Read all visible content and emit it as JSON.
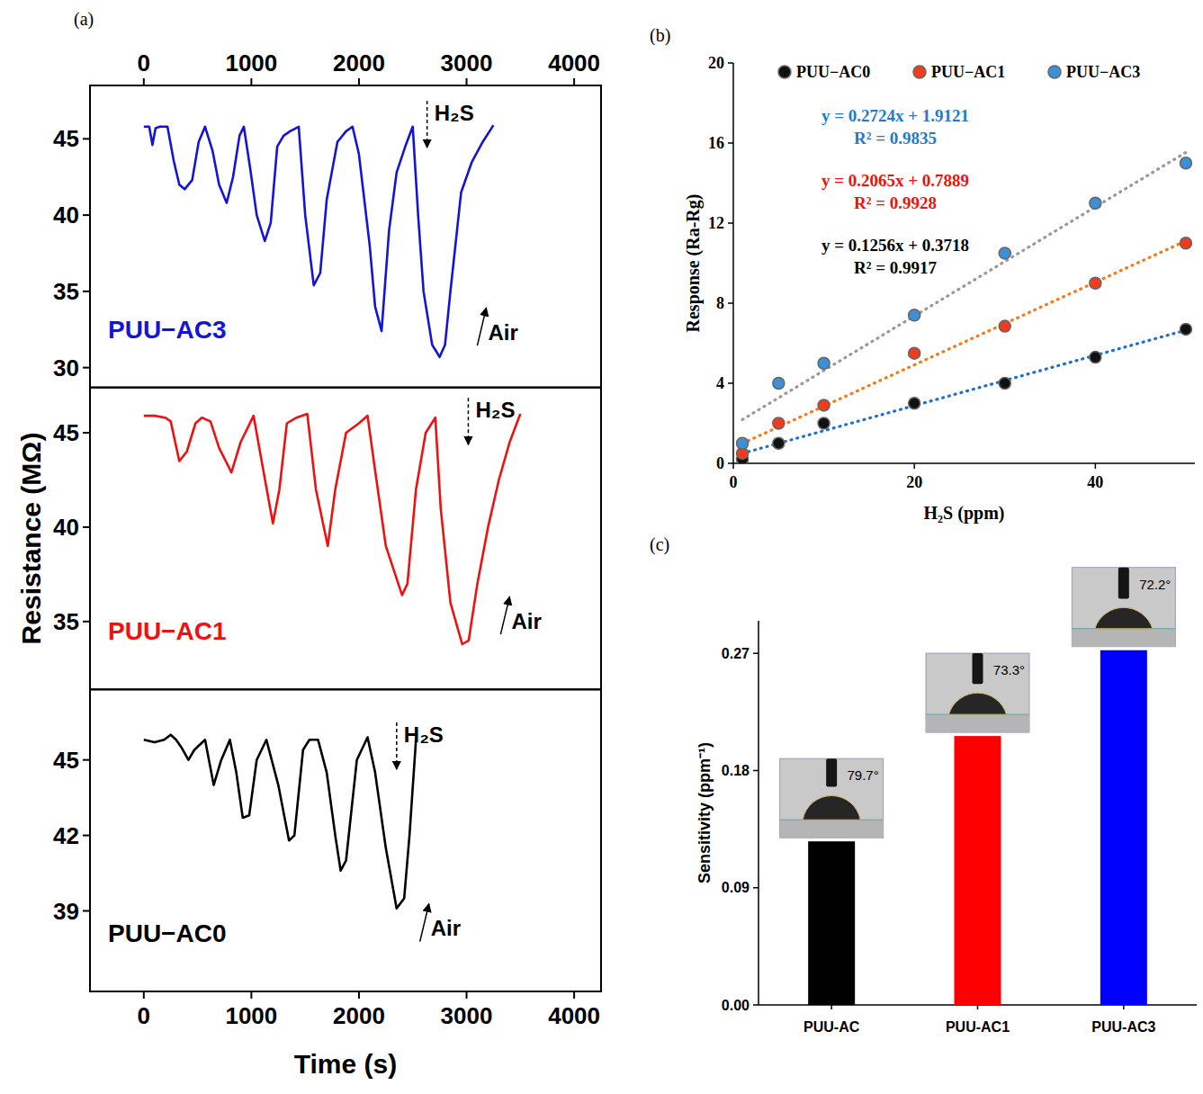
{
  "chart_data": [
    {
      "type": "line",
      "panel_label": "(a)",
      "x": [
        0,
        50,
        80,
        110,
        150,
        220,
        280,
        330,
        380,
        450,
        510,
        570,
        640,
        700,
        770,
        830,
        890,
        930,
        990,
        1050,
        1125,
        1180,
        1240,
        1300,
        1360,
        1440,
        1500,
        1580,
        1640,
        1700,
        1800,
        1880,
        1940,
        2000,
        2100,
        2150,
        2210,
        2280,
        2350,
        2430,
        2500,
        2550,
        2600,
        2680,
        2750,
        2800,
        2850,
        2950,
        3050,
        3150,
        3250
      ],
      "series": [
        {
          "name": "PUU−AC3",
          "color": "#1414d9",
          "values": [
            45.8,
            45.8,
            44.6,
            45.7,
            45.8,
            45.8,
            43.5,
            42,
            41.7,
            42.3,
            44.8,
            45.8,
            44.2,
            42,
            40.8,
            42.5,
            45.2,
            45.8,
            43,
            40,
            38.3,
            39.5,
            44.5,
            45.2,
            45.5,
            45.8,
            40,
            35.4,
            36.2,
            41,
            44.8,
            45.5,
            45.8,
            44,
            38,
            34,
            32.4,
            39,
            42.8,
            44.5,
            45.8,
            40,
            35,
            31.5,
            30.7,
            31.5,
            35,
            41.5,
            43.5,
            44.8,
            45.9
          ]
        }
      ],
      "xlim": [
        -500,
        4250
      ],
      "xticks": [
        0,
        1000,
        2000,
        3000,
        4000
      ],
      "ylim": [
        28.7,
        48.5
      ],
      "yticks": [
        30,
        35,
        40,
        45
      ],
      "annotations": [
        {
          "text": "H₂S",
          "x": 2700,
          "y": 46.2
        },
        {
          "text": "Air",
          "x": 3200,
          "y": 31.8
        }
      ]
    },
    {
      "type": "line",
      "x": [
        0,
        100,
        200,
        250,
        330,
        400,
        480,
        540,
        620,
        700,
        815,
        900,
        1020,
        1080,
        1200,
        1260,
        1330,
        1420,
        1520,
        1600,
        1710,
        1780,
        1880,
        2000,
        2080,
        2150,
        2250,
        2400,
        2450,
        2530,
        2620,
        2710,
        2760,
        2850,
        2960,
        3020,
        3100,
        3200,
        3300,
        3400,
        3500
      ],
      "series": [
        {
          "name": "PUU−AC1",
          "color": "#ee1111",
          "values": [
            45.9,
            45.9,
            45.8,
            45.6,
            43.5,
            44,
            45.5,
            45.8,
            45.6,
            44.2,
            42.9,
            44.5,
            45.9,
            44,
            40.2,
            42,
            45.5,
            45.8,
            46,
            42,
            39,
            42,
            45,
            45.5,
            45.9,
            43,
            39,
            36.4,
            37,
            42,
            45,
            45.8,
            41,
            36,
            33.8,
            34,
            37,
            40,
            42.5,
            44.5,
            46
          ]
        }
      ],
      "xlim": [
        -500,
        4250
      ],
      "ylim": [
        31.4,
        47.4
      ],
      "yticks": [
        35,
        40,
        45
      ],
      "y_label": "Resistance (MΩ)",
      "tick_labels": "y",
      "annotations": [
        {
          "text": "H₂S",
          "x": 3083,
          "y": 45.8
        },
        {
          "text": "Air",
          "x": 3417,
          "y": 34.6
        }
      ]
    },
    {
      "type": "line",
      "x": [
        0,
        100,
        190,
        250,
        300,
        350,
        415,
        470,
        570,
        650,
        720,
        800,
        860,
        920,
        980,
        1050,
        1140,
        1250,
        1350,
        1400,
        1480,
        1540,
        1620,
        1700,
        1780,
        1830,
        1880,
        1980,
        2080,
        2150,
        2250,
        2350,
        2420,
        2470,
        2530
      ],
      "series": [
        {
          "name": "PUU−AC0",
          "color": "#000000",
          "values": [
            45.8,
            45.7,
            45.8,
            46,
            45.8,
            45.5,
            45,
            45.4,
            45.8,
            44,
            45,
            45.8,
            44.5,
            42.7,
            42.8,
            45,
            45.8,
            44,
            41.8,
            42,
            45.4,
            45.8,
            45.8,
            44.5,
            42,
            40.6,
            41,
            45,
            45.9,
            44.5,
            41.5,
            39.1,
            39.5,
            42,
            45.8
          ]
        }
      ],
      "xlim": [
        -500,
        4250
      ],
      "xticks": [
        0,
        1000,
        2000,
        3000,
        4000
      ],
      "ylim": [
        35.8,
        47.8
      ],
      "yticks": [
        39,
        42,
        45
      ],
      "x_label": "Time (s)",
      "annotations": [
        {
          "text": "H₂S",
          "x": 2417,
          "y": 45.7
        },
        {
          "text": "Air",
          "x": 2667,
          "y": 38.0
        }
      ]
    },
    {
      "type": "scatter",
      "panel_label": "(b)",
      "marker": "circle",
      "legend": "top",
      "x": [
        1,
        5,
        10,
        20,
        30,
        40,
        50
      ],
      "series": [
        {
          "name": "PUU−AC0",
          "color": "#111111",
          "values": [
            0.2,
            1.0,
            2.0,
            3.0,
            4.0,
            5.3,
            6.7
          ],
          "fit": {
            "slope": 0.1256,
            "intercept": 0.3718,
            "equation": "y = 0.1256x + 0.3718",
            "r2_label": "R² = 0.9917",
            "color": "#1f6fd0",
            "label_color": "#000000",
            "line_style": "dotted"
          }
        },
        {
          "name": "PUU−AC1",
          "color": "#f03c1e",
          "values": [
            0.5,
            2.0,
            2.9,
            5.5,
            6.85,
            9.0,
            11.0
          ],
          "fit": {
            "slope": 0.2065,
            "intercept": 0.7889,
            "equation": "y = 0.2065x + 0.7889",
            "r2_label": "R² = 0.9928",
            "color": "#f07d1a",
            "label_color": "#ee1111",
            "line_style": "dotted"
          }
        },
        {
          "name": "PUU−AC3",
          "color": "#3d8fd6",
          "values": [
            1.0,
            4.0,
            5.0,
            7.4,
            10.5,
            13.0,
            15.0
          ],
          "fit": {
            "slope": 0.2724,
            "intercept": 1.9121,
            "equation": "y = 0.2724x + 1.9121",
            "r2_label": "R² = 0.9835",
            "color": "#999999",
            "label_color": "#1f7ad0",
            "line_style": "dotted"
          }
        }
      ],
      "x_label": "H₂S (ppm)",
      "y_label": "Response (Ra-Rg)",
      "xlim": [
        0,
        51
      ],
      "xticks": [
        0,
        20,
        40
      ],
      "ylim": [
        0,
        20
      ],
      "yticks": [
        0,
        4,
        8,
        12,
        16,
        20
      ]
    },
    {
      "type": "bar",
      "panel_label": "(c)",
      "categories": [
        "PUU-AC",
        "PUU-AC1",
        "PUU-AC3"
      ],
      "values": [
        0.1256,
        0.2065,
        0.2724
      ],
      "colors": [
        "#000000",
        "#ff0000",
        "#0000ff"
      ],
      "ylim": [
        0,
        0.295
      ],
      "yticks": [
        {
          "value": 0,
          "label": "0.00"
        },
        {
          "value": 0.09,
          "label": "0.09"
        },
        {
          "value": 0.18,
          "label": "0.18"
        },
        {
          "value": 0.27,
          "label": "0.27"
        }
      ],
      "y_label": "Sensitivity (ppm⁻¹)",
      "contact_angles": [
        79.7,
        73.3,
        72.2
      ],
      "contact_angle_labels": [
        "79.7°",
        "73.3°",
        "72.2°"
      ]
    }
  ]
}
